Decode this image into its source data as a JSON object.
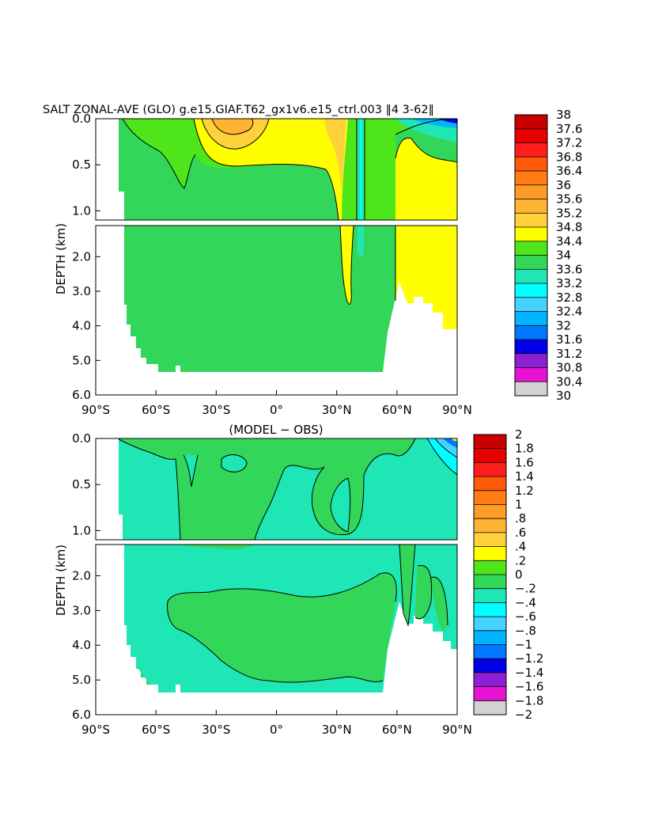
{
  "chart_data": [
    {
      "type": "heatmap",
      "title": "SALT ZONAL-AVE (GLO) g.e15.GIAF.T62_gx1v6.e15_ctrl.003 ‖4 3-62‖",
      "ylabel": "DEPTH (km)",
      "xlabel": "",
      "x_ticks": [
        "90°S",
        "60°S",
        "30°S",
        "0°",
        "30°N",
        "60°N",
        "90°N"
      ],
      "y_ticks_upper": [
        "0.0",
        "0.5",
        "1.0"
      ],
      "y_ticks_lower": [
        "2.0",
        "3.0",
        "4.0",
        "5.0",
        "6.0"
      ],
      "xlim": [
        -90,
        90
      ],
      "ylim_km": [
        0,
        6
      ],
      "colorbar_labels": [
        "38",
        "37.6",
        "37.2",
        "36.8",
        "36.4",
        "36",
        "35.6",
        "35.2",
        "34.8",
        "34.4",
        "34",
        "33.6",
        "33.2",
        "32.8",
        "32.4",
        "32",
        "31.6",
        "31.2",
        "30.8",
        "30.4",
        "30"
      ],
      "colorbar_colors": [
        "#c80000",
        "#e60000",
        "#ff1e1e",
        "#ff5a0a",
        "#ff7d14",
        "#ff9b28",
        "#ffb432",
        "#ffd23c",
        "#ffff00",
        "#4ee61a",
        "#32d75a",
        "#1ee6b4",
        "#00ffff",
        "#46d2ff",
        "#00b4ff",
        "#0078ff",
        "#0000e6",
        "#8c20d2",
        "#e614d2",
        "#d2d2d2",
        "#6e6e6e"
      ]
    },
    {
      "type": "heatmap",
      "title": "(MODEL − OBS)",
      "ylabel": "DEPTH (km)",
      "xlabel": "",
      "x_ticks": [
        "90°S",
        "60°S",
        "30°S",
        "0°",
        "30°N",
        "60°N",
        "90°N"
      ],
      "y_ticks_upper": [
        "0.0",
        "0.5",
        "1.0"
      ],
      "y_ticks_lower": [
        "2.0",
        "3.0",
        "4.0",
        "5.0",
        "6.0"
      ],
      "xlim": [
        -90,
        90
      ],
      "ylim_km": [
        0,
        6
      ],
      "colorbar_labels": [
        "2",
        "1.8",
        "1.6",
        "1.4",
        "1.2",
        "1",
        ".8",
        ".6",
        ".4",
        ".2",
        "0",
        "−.2",
        "−.4",
        "−.6",
        "−.8",
        "−1",
        "−1.2",
        "−1.4",
        "−1.6",
        "−1.8",
        "−2"
      ],
      "colorbar_colors": [
        "#c80000",
        "#e60000",
        "#ff1e1e",
        "#ff5a0a",
        "#ff7d14",
        "#ff9b28",
        "#ffb432",
        "#ffd23c",
        "#ffff00",
        "#4ee61a",
        "#32d75a",
        "#1ee6b4",
        "#00ffff",
        "#46d2ff",
        "#00b4ff",
        "#0078ff",
        "#0000e6",
        "#8c20d2",
        "#e614d2",
        "#d2d2d2",
        "#6e6e6e"
      ]
    }
  ],
  "colors": {
    "green_field": "#32d75a",
    "light_green": "#4ee61a",
    "yellow": "#ffff00",
    "orange": "#ffb432",
    "gold": "#ffd23c",
    "cyan_green": "#1ee6b4",
    "cyan": "#00ffff",
    "navy": "#0000e6"
  }
}
